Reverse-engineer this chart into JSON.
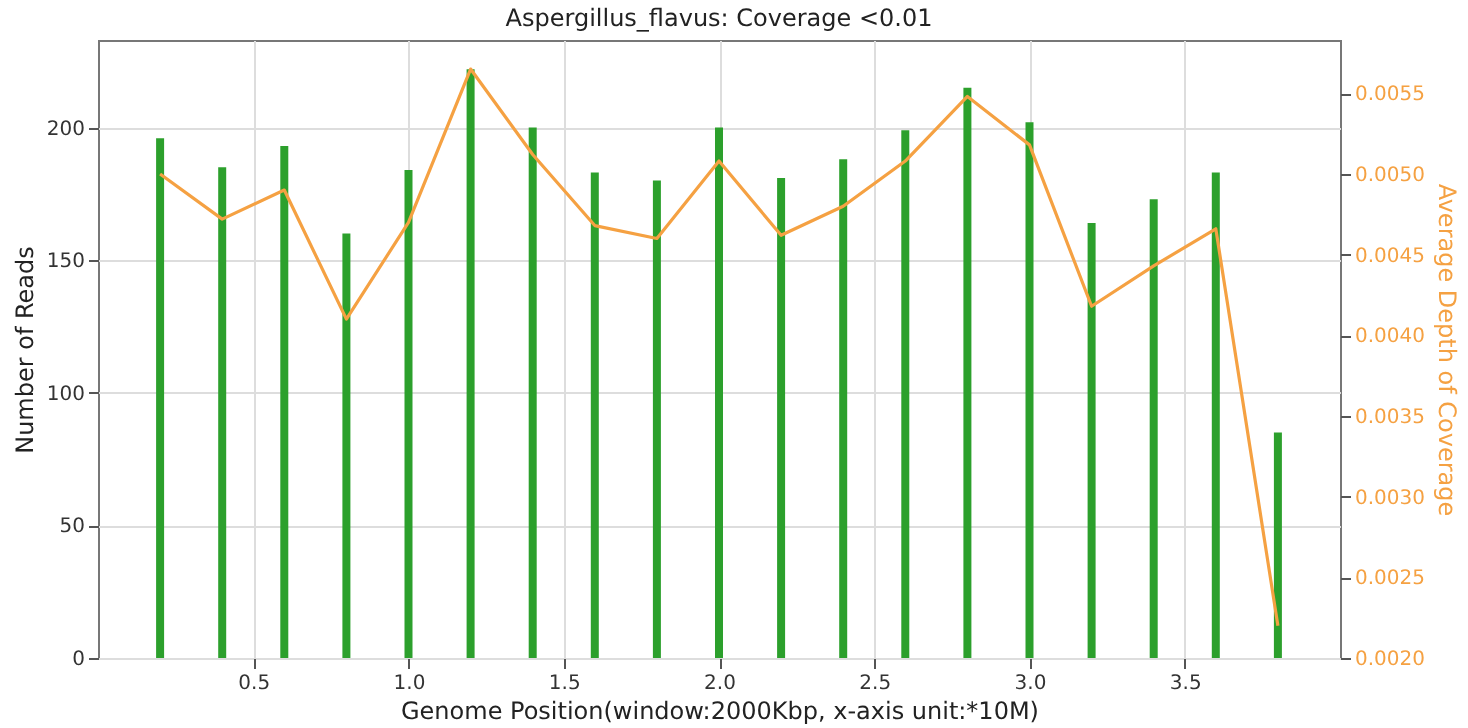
{
  "chart_data": {
    "type": "bar",
    "title": "Aspergillus_flavus: Coverage <0.01",
    "xlabel": "Genome Position(window:2000Kbp, x-axis unit:*10M)",
    "ylabel": "Number of Reads",
    "y2label": "Average Depth of Coverage",
    "x": [
      0.2,
      0.4,
      0.6,
      0.8,
      1.0,
      1.2,
      1.4,
      1.6,
      1.8,
      2.0,
      2.2,
      2.4,
      2.6,
      2.8,
      3.0,
      3.2,
      3.4,
      3.6,
      3.8
    ],
    "series": [
      {
        "type": "bar",
        "color": "#2ca02c",
        "values": [
          196,
          185,
          193,
          160,
          184,
          222,
          200,
          183,
          180,
          200,
          181,
          188,
          199,
          215,
          202,
          164,
          173,
          183,
          85
        ]
      },
      {
        "type": "line",
        "axis": "y2",
        "color": "#f5a142",
        "values": [
          0.005,
          0.00472,
          0.0049,
          0.0041,
          0.0047,
          0.00565,
          0.00512,
          0.00468,
          0.0046,
          0.00508,
          0.00462,
          0.0048,
          0.00508,
          0.00548,
          0.00518,
          0.00418,
          0.00443,
          0.00466,
          0.0022
        ]
      }
    ],
    "xlim": [
      0,
      4
    ],
    "xticks": [
      {
        "value": 0.5,
        "label": "0.5"
      },
      {
        "value": 1,
        "label": "1.0"
      },
      {
        "value": 1.5,
        "label": "1.5"
      },
      {
        "value": 2,
        "label": "2.0"
      },
      {
        "value": 2.5,
        "label": "2.5"
      },
      {
        "value": 3,
        "label": "3.0"
      },
      {
        "value": 3.5,
        "label": "3.5"
      }
    ],
    "ylim": [
      0,
      233
    ],
    "yticks": [
      0,
      50,
      100,
      150,
      200
    ],
    "y2lim": [
      0.002,
      0.00583
    ],
    "y2ticks": [
      {
        "value": 0.002,
        "label": "0.0020"
      },
      {
        "value": 0.0025,
        "label": "0.0025"
      },
      {
        "value": 0.003,
        "label": "0.0030"
      },
      {
        "value": 0.0035,
        "label": "0.0035"
      },
      {
        "value": 0.004,
        "label": "0.0040"
      },
      {
        "value": 0.0045,
        "label": "0.0045"
      },
      {
        "value": 0.005,
        "label": "0.0050"
      },
      {
        "value": 0.0055,
        "label": "0.0055"
      }
    ],
    "grid": true
  }
}
